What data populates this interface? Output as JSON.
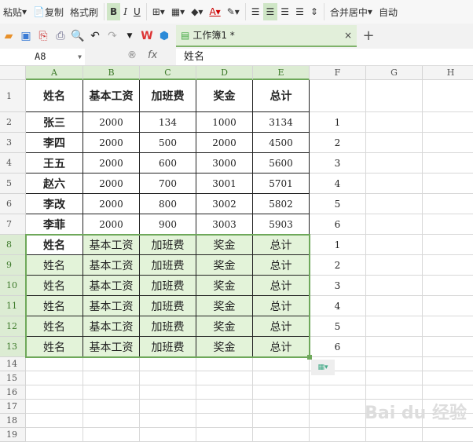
{
  "ribbon": {
    "paste": "粘贴",
    "copy": "复制",
    "format_painter": "格式刷",
    "bold": "B",
    "italic": "I",
    "underline": "U",
    "merge_center": "合并居中",
    "auto_wrap": "自动"
  },
  "quickbar": {
    "doc_tab": "工作簿1 *",
    "close": "×",
    "new_tab": "+"
  },
  "formula_bar": {
    "cell_ref": "A8",
    "fx": "fx",
    "value": "姓名"
  },
  "columns": [
    "A",
    "B",
    "C",
    "D",
    "E",
    "F",
    "G",
    "H"
  ],
  "rows": [
    "1",
    "2",
    "3",
    "4",
    "5",
    "6",
    "7",
    "8",
    "9",
    "10",
    "11",
    "12",
    "13",
    "14",
    "15",
    "16",
    "17",
    "18",
    "19"
  ],
  "table": {
    "header": [
      "姓名",
      "基本工资",
      "加班费",
      "奖金",
      "总计"
    ],
    "data": [
      [
        "张三",
        "2000",
        "134",
        "1000",
        "3134"
      ],
      [
        "李四",
        "2000",
        "500",
        "2000",
        "4500"
      ],
      [
        "王五",
        "2000",
        "600",
        "3000",
        "5600"
      ],
      [
        "赵六",
        "2000",
        "700",
        "3001",
        "5701"
      ],
      [
        "李改",
        "2000",
        "800",
        "3002",
        "5802"
      ],
      [
        "李菲",
        "2000",
        "900",
        "3003",
        "5903"
      ]
    ],
    "copied": [
      [
        "姓名",
        "基本工资",
        "加班费",
        "奖金",
        "总计"
      ],
      [
        "姓名",
        "基本工资",
        "加班费",
        "奖金",
        "总计"
      ],
      [
        "姓名",
        "基本工资",
        "加班费",
        "奖金",
        "总计"
      ],
      [
        "姓名",
        "基本工资",
        "加班费",
        "奖金",
        "总计"
      ],
      [
        "姓名",
        "基本工资",
        "加班费",
        "奖金",
        "总计"
      ],
      [
        "姓名",
        "基本工资",
        "加班费",
        "奖金",
        "总计"
      ]
    ],
    "col_f": [
      "1",
      "2",
      "3",
      "4",
      "5",
      "6",
      "1",
      "2",
      "3",
      "4",
      "5",
      "6"
    ]
  },
  "selection": "A8:E13",
  "watermark": "Baidu经验",
  "colors": {
    "accent": "#6ea85a",
    "selection_fill": "#e3f3d9"
  }
}
